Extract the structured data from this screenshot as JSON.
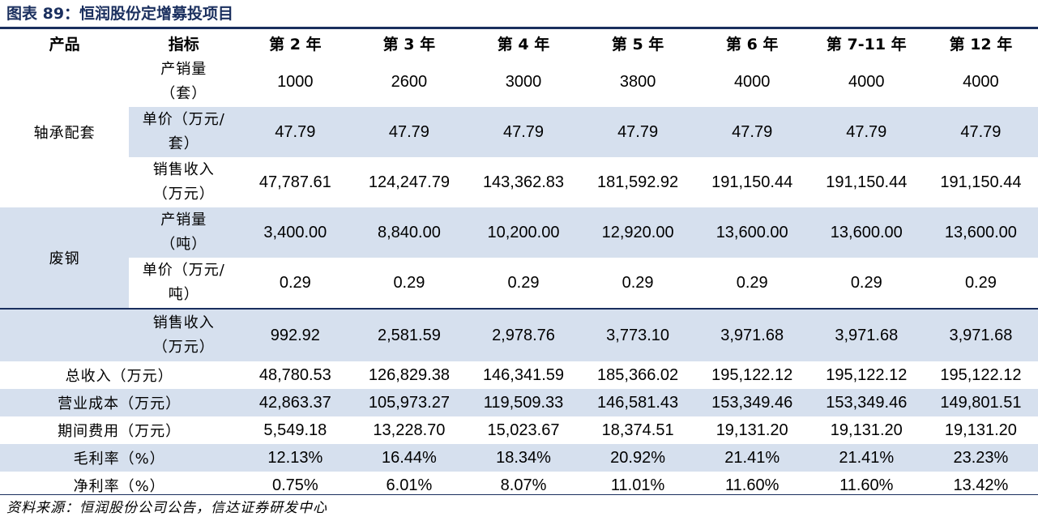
{
  "title": "图表 89：恒润股份定增募投项目",
  "headers": [
    "产品",
    "指标",
    "第 2 年",
    "第 3 年",
    "第 4 年",
    "第 5 年",
    "第 6 年",
    "第 7-11 年",
    "第 12 年"
  ],
  "groups": {
    "bearing": "轴承配套",
    "scrap": "废钢"
  },
  "rows": {
    "bearing_volume": {
      "label_1": "产销量",
      "label_2": "（套）",
      "values": [
        "1000",
        "2600",
        "3000",
        "3800",
        "4000",
        "4000",
        "4000"
      ]
    },
    "bearing_price": {
      "label_1": "单价（万元/",
      "label_2": "套）",
      "values": [
        "47.79",
        "47.79",
        "47.79",
        "47.79",
        "47.79",
        "47.79",
        "47.79"
      ]
    },
    "bearing_revenue": {
      "label_1": "销售收入",
      "label_2": "（万元）",
      "values": [
        "47,787.61",
        "124,247.79",
        "143,362.83",
        "181,592.92",
        "191,150.44",
        "191,150.44",
        "191,150.44"
      ]
    },
    "scrap_volume": {
      "label_1": "产销量",
      "label_2": "（吨）",
      "values": [
        "3,400.00",
        "8,840.00",
        "10,200.00",
        "12,920.00",
        "13,600.00",
        "13,600.00",
        "13,600.00"
      ]
    },
    "scrap_price": {
      "label_1": "单价（万元/",
      "label_2": "吨）",
      "values": [
        "0.29",
        "0.29",
        "0.29",
        "0.29",
        "0.29",
        "0.29",
        "0.29"
      ]
    },
    "scrap_revenue": {
      "label_1": "销售收入",
      "label_2": "（万元）",
      "values": [
        "992.92",
        "2,581.59",
        "2,978.76",
        "3,773.10",
        "3,971.68",
        "3,971.68",
        "3,971.68"
      ]
    },
    "total_revenue": {
      "label": "总收入（万元）",
      "values": [
        "48,780.53",
        "126,829.38",
        "146,341.59",
        "185,366.02",
        "195,122.12",
        "195,122.12",
        "195,122.12"
      ]
    },
    "operating_cost": {
      "label": "营业成本（万元）",
      "values": [
        "42,863.37",
        "105,973.27",
        "119,509.33",
        "146,581.43",
        "153,349.46",
        "153,349.46",
        "149,801.51"
      ]
    },
    "period_expense": {
      "label": "期间费用（万元）",
      "values": [
        "5,549.18",
        "13,228.70",
        "15,023.67",
        "18,374.51",
        "19,131.20",
        "19,131.20",
        "19,131.20"
      ]
    },
    "gross_margin": {
      "label": "毛利率（%）",
      "values": [
        "12.13%",
        "16.44%",
        "18.34%",
        "20.92%",
        "21.41%",
        "21.41%",
        "23.23%"
      ]
    },
    "net_margin": {
      "label": "净利率（%）",
      "values": [
        "0.75%",
        "6.01%",
        "8.07%",
        "11.01%",
        "11.60%",
        "11.60%",
        "13.42%"
      ]
    }
  },
  "source": "资料来源：恒润股份公司公告，信达证券研发中心"
}
